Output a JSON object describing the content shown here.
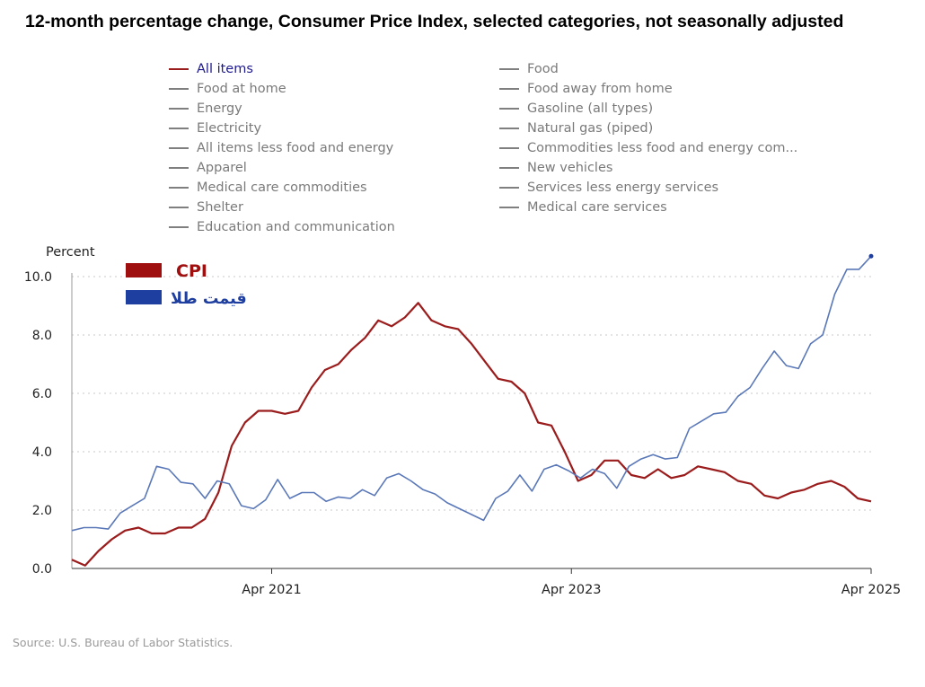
{
  "title": "12-month percentage change, Consumer Price Index, selected categories, not seasonally adjusted",
  "legend": {
    "items": [
      {
        "label": "All items",
        "active": true,
        "color": "#9b1c1c"
      },
      {
        "label": "Food"
      },
      {
        "label": "Food at home"
      },
      {
        "label": "Food away from home"
      },
      {
        "label": "Energy"
      },
      {
        "label": "Gasoline (all types)"
      },
      {
        "label": "Electricity"
      },
      {
        "label": "Natural gas (piped)"
      },
      {
        "label": "All items less food and energy"
      },
      {
        "label": "Commodities less food and energy com..."
      },
      {
        "label": "Apparel"
      },
      {
        "label": "New vehicles"
      },
      {
        "label": "Medical care commodities"
      },
      {
        "label": "Services less energy services"
      },
      {
        "label": "Shelter"
      },
      {
        "label": "Medical care services"
      },
      {
        "label": "Education and communication"
      }
    ]
  },
  "overlay_legend": [
    {
      "label": "CPI",
      "color": "#a00f0f"
    },
    {
      "label": "قیمت طلا",
      "color": "#1f3fa0"
    }
  ],
  "source": "Source: U.S. Bureau of Labor Statistics.",
  "chart_data": {
    "type": "line",
    "ylabel": "Percent",
    "ylim": [
      0,
      10.0
    ],
    "yticks": [
      "0.0",
      "2.0",
      "4.0",
      "6.0",
      "8.0",
      "10.0"
    ],
    "xlim": [
      0,
      64
    ],
    "xticks": [
      {
        "x": 16,
        "label": "Apr 2021"
      },
      {
        "x": 40,
        "label": "Apr 2023"
      },
      {
        "x": 64,
        "label": "Apr 2025"
      }
    ],
    "grid": true,
    "series": [
      {
        "name": "CPI",
        "color": "#9b1c1c",
        "values": [
          0.3,
          0.1,
          0.6,
          1.0,
          1.3,
          1.4,
          1.2,
          1.2,
          1.4,
          1.4,
          1.7,
          2.6,
          4.2,
          5.0,
          5.4,
          5.4,
          5.3,
          5.4,
          6.2,
          6.8,
          7.0,
          7.5,
          7.9,
          8.5,
          8.3,
          8.6,
          9.1,
          8.5,
          8.3,
          8.2,
          7.7,
          7.1,
          6.5,
          6.4,
          6.0,
          5.0,
          4.9,
          4.0,
          3.0,
          3.2,
          3.7,
          3.7,
          3.2,
          3.1,
          3.4,
          3.1,
          3.2,
          3.5,
          3.4,
          3.3,
          3.0,
          2.9,
          2.5,
          2.4,
          2.6,
          2.7,
          2.9,
          3.0,
          2.8,
          2.4,
          2.3
        ]
      },
      {
        "name": "قیمت طلا",
        "color": "#5a78b8",
        "values": [
          1.3,
          1.4,
          1.4,
          1.35,
          1.9,
          2.15,
          2.4,
          3.5,
          3.4,
          2.95,
          2.9,
          2.4,
          3.0,
          2.9,
          2.15,
          2.05,
          2.35,
          3.05,
          2.4,
          2.6,
          2.6,
          2.3,
          2.45,
          2.4,
          2.7,
          2.5,
          3.1,
          3.25,
          3.0,
          2.7,
          2.55,
          2.25,
          2.05,
          1.85,
          1.65,
          2.4,
          2.65,
          3.2,
          2.65,
          3.4,
          3.55,
          3.35,
          3.1,
          3.4,
          3.25,
          2.75,
          3.5,
          3.75,
          3.9,
          3.75,
          3.8,
          4.8,
          5.05,
          5.3,
          5.35,
          5.9,
          6.2,
          6.85,
          7.45,
          6.95,
          6.85,
          7.7,
          8.0,
          9.4,
          10.25,
          10.25,
          10.7
        ]
      }
    ]
  }
}
